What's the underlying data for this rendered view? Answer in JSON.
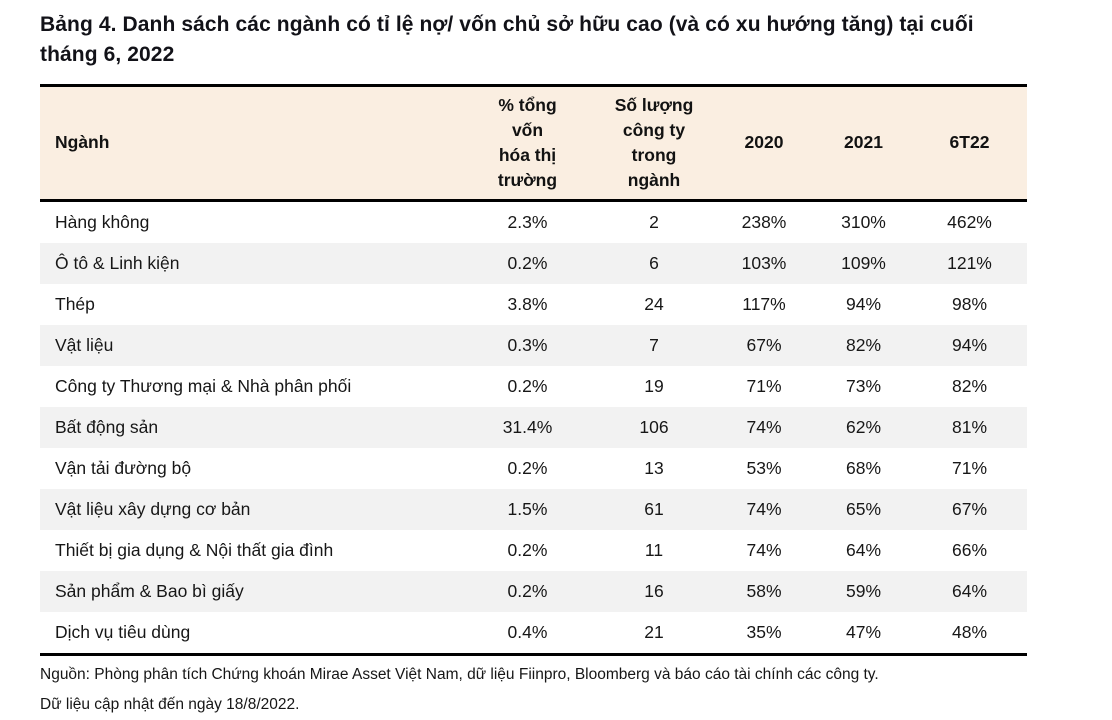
{
  "title": "Bảng 4. Danh sách các ngành có tỉ lệ nợ/ vốn chủ sở hữu cao (và có xu hướng tăng) tại cuối tháng 6, 2022",
  "table": {
    "headers": [
      "Ngành",
      "% tổng\nvốn\nhóa thị\ntrường",
      "Số lượng\ncông ty\ntrong\nngành",
      "2020",
      "2021",
      "6T22"
    ],
    "rows": [
      [
        "Hàng không",
        "2.3%",
        "2",
        "238%",
        "310%",
        "462%"
      ],
      [
        "Ô tô & Linh kiện",
        "0.2%",
        "6",
        "103%",
        "109%",
        "121%"
      ],
      [
        "Thép",
        "3.8%",
        "24",
        "117%",
        "94%",
        "98%"
      ],
      [
        "Vật liệu",
        "0.3%",
        "7",
        "67%",
        "82%",
        "94%"
      ],
      [
        "Công ty Thương mại & Nhà phân phối",
        "0.2%",
        "19",
        "71%",
        "73%",
        "82%"
      ],
      [
        "Bất động sản",
        "31.4%",
        "106",
        "74%",
        "62%",
        "81%"
      ],
      [
        "Vận tải đường bộ",
        "0.2%",
        "13",
        "53%",
        "68%",
        "71%"
      ],
      [
        "Vật liệu xây dựng cơ bản",
        "1.5%",
        "61",
        "74%",
        "65%",
        "67%"
      ],
      [
        "Thiết bị gia dụng & Nội thất gia đình",
        "0.2%",
        "11",
        "74%",
        "64%",
        "66%"
      ],
      [
        "Sản phẩm & Bao bì giấy",
        "0.2%",
        "16",
        "58%",
        "59%",
        "64%"
      ],
      [
        "Dịch vụ tiêu dùng",
        "0.4%",
        "21",
        "35%",
        "47%",
        "48%"
      ]
    ]
  },
  "footer": {
    "source": "Nguồn: Phòng phân tích Chứng khoán Mirae Asset Việt Nam, dữ liệu Fiinpro, Bloomberg và báo cáo tài chính các công ty.",
    "updated": "Dữ liệu cập nhật đến ngày 18/8/2022."
  },
  "colors": {
    "header_bg": "#faeee1",
    "row_alt_bg": "#f2f2f2",
    "border": "#000000",
    "text": "#1a1a1a"
  }
}
